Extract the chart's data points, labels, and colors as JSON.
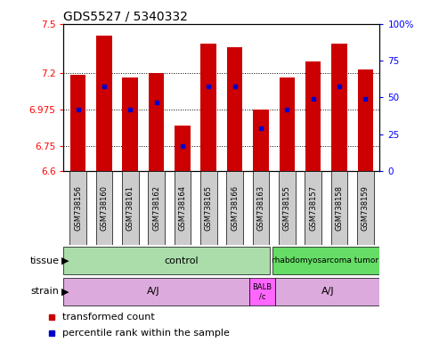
{
  "title": "GDS5527 / 5340332",
  "samples": [
    "GSM738156",
    "GSM738160",
    "GSM738161",
    "GSM738162",
    "GSM738164",
    "GSM738165",
    "GSM738166",
    "GSM738163",
    "GSM738155",
    "GSM738157",
    "GSM738158",
    "GSM738159"
  ],
  "bar_tops": [
    7.19,
    7.43,
    7.17,
    7.2,
    6.88,
    7.38,
    7.36,
    6.975,
    7.17,
    7.27,
    7.38,
    7.22
  ],
  "bar_bottom": 6.6,
  "blue_marks": [
    6.975,
    7.12,
    6.975,
    7.02,
    6.75,
    7.12,
    7.12,
    6.86,
    6.975,
    7.04,
    7.12,
    7.04
  ],
  "ylim_left": [
    6.6,
    7.5
  ],
  "ylim_right": [
    0,
    100
  ],
  "yticks_left": [
    6.6,
    6.75,
    6.975,
    7.2,
    7.5
  ],
  "yticks_right": [
    0,
    25,
    50,
    75,
    100
  ],
  "ytick_labels_left": [
    "6.6",
    "6.75",
    "6.975",
    "7.2",
    "7.5"
  ],
  "ytick_labels_right": [
    "0",
    "25",
    "50",
    "75",
    "100%"
  ],
  "hlines": [
    7.2,
    6.975,
    6.75
  ],
  "bar_color": "#cc0000",
  "blue_color": "#0000cc",
  "bg_plot": "#ffffff",
  "bg_sample_row": "#cccccc",
  "tissue_ctrl_color": "#aaddaa",
  "tissue_rhab_color": "#66dd66",
  "strain_aj_color": "#ddaadd",
  "strain_balb_color": "#ff66ff",
  "legend_items": [
    {
      "color": "#cc0000",
      "label": "transformed count"
    },
    {
      "color": "#0000cc",
      "label": "percentile rank within the sample"
    }
  ]
}
